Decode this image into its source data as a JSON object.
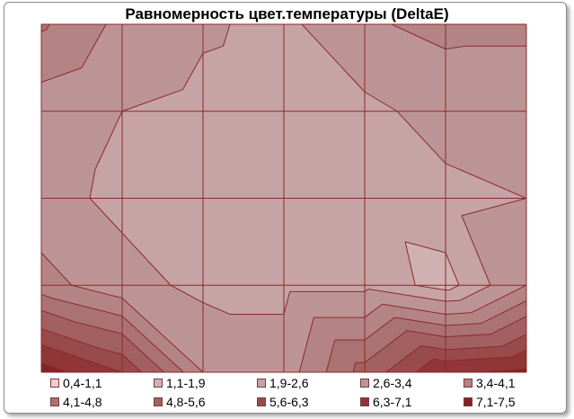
{
  "chart_data": {
    "type": "contour",
    "title": "Равномерность цвет.температуры (DeltaE)",
    "legend_position": "bottom",
    "grid": true,
    "grid_size": {
      "columns": 6,
      "rows": 4
    },
    "z_levels": [
      {
        "label": "0,4-1,1",
        "range": [
          0.4,
          1.1
        ],
        "color": "#eecdcd"
      },
      {
        "label": "1,1-1,9",
        "range": [
          1.1,
          1.9
        ],
        "color": "#cfb1b2"
      },
      {
        "label": "1,9-2,6",
        "range": [
          1.9,
          2.6
        ],
        "color": "#c6a3a4"
      },
      {
        "label": "2,6-3,4",
        "range": [
          2.6,
          3.4
        ],
        "color": "#bd9495"
      },
      {
        "label": "3,4-4,1",
        "range": [
          3.4,
          4.1
        ],
        "color": "#b48485"
      },
      {
        "label": "4,1-4,8",
        "range": [
          4.1,
          4.8
        ],
        "color": "#ab7273"
      },
      {
        "label": "4,8-5,6",
        "range": [
          4.8,
          5.6
        ],
        "color": "#a26061"
      },
      {
        "label": "5,6-6,3",
        "range": [
          5.6,
          6.3
        ],
        "color": "#994b4c"
      },
      {
        "label": "6,3-7,1",
        "range": [
          6.3,
          7.1
        ],
        "color": "#903636"
      },
      {
        "label": "7,1-7,5",
        "range": [
          7.1,
          7.5
        ],
        "color": "#872222"
      }
    ],
    "grid_values": [
      [
        4.2,
        3.2,
        2.7,
        2.4,
        3.3,
        3.6,
        3.6
      ],
      [
        3.0,
        2.6,
        2.4,
        2.3,
        2.4,
        2.9,
        2.8
      ],
      [
        2.9,
        2.4,
        2.0,
        1.9,
        2.2,
        2.4,
        2.6
      ],
      [
        3.7,
        2.9,
        2.4,
        2.4,
        2.4,
        1.6,
        3.4
      ],
      [
        7.5,
        6.3,
        3.4,
        3.0,
        5.1,
        7.0,
        7.3
      ]
    ]
  }
}
